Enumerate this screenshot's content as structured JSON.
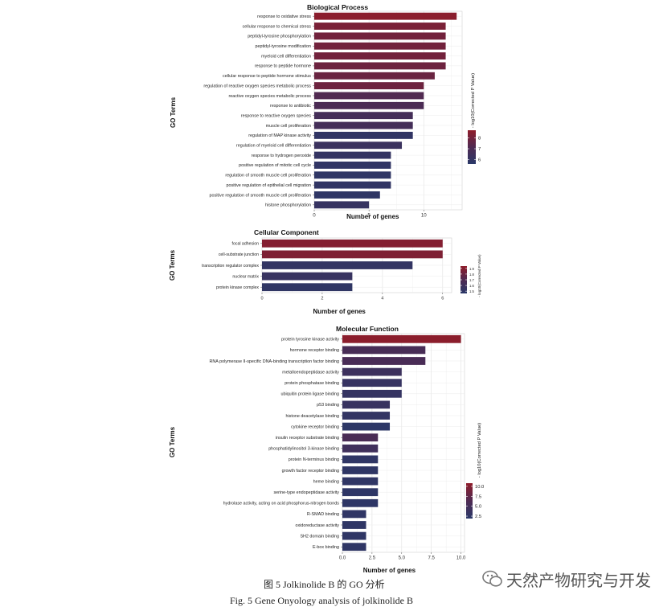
{
  "figure": {
    "caption_cn": "图 5   Jolkinolide B 的 GO 分析",
    "caption_en": "Fig. 5    Gene Onyology analysis of jolkinolide B",
    "watermark": "天然产物研究与开发"
  },
  "chart_data": [
    {
      "type": "bar",
      "orientation": "horizontal",
      "title": "Biological Process",
      "xlabel": "Number of genes",
      "ylabel": "GO Terms",
      "xlim": [
        0,
        13.5
      ],
      "xticks": [
        0,
        5,
        10
      ],
      "xtick_labels": [
        "0",
        "5",
        "10"
      ],
      "grid": true,
      "categories": [
        "response to oxidative stress",
        "cellular response to chemical stress",
        "peptidyl-tyrosine phosphorylation",
        "peptidyl-tyrosine modification",
        "myeloid cell differentiation",
        "response to peptide hormone",
        "cellular response to peptide hormone stimulus",
        "regulation of reactive oxygen species metabolic process",
        "reactive oxygen species metabolic process",
        "response to antibiotic",
        "response to reactive oxygen species",
        "muscle cell proliferation",
        "regulation of MAP kinase activity",
        "regulation of myeloid cell differentiation",
        "response to hydrogen peroxide",
        "positive regulation of mitotic cell cycle",
        "regulation of smooth muscle cell proliferation",
        "positive regulation of epithelial cell migration",
        "positive regulation of smooth muscle cell proliferation",
        "histone phosphorylation"
      ],
      "values": [
        13,
        12,
        12,
        12,
        12,
        12,
        11,
        10,
        10,
        10,
        9,
        9,
        9,
        8,
        7,
        7,
        7,
        7,
        6,
        5
      ],
      "color_values": [
        8.6,
        8.2,
        8.0,
        8.0,
        8.0,
        7.9,
        7.8,
        7.9,
        7.2,
        7.0,
        6.7,
        6.7,
        5.9,
        6.3,
        6.0,
        5.9,
        5.8,
        5.9,
        5.8,
        6.1
      ],
      "legend": {
        "title": "- log10(Corrected P Value)",
        "ticks": [
          8,
          7,
          6
        ],
        "tick_labels": [
          "8",
          "7",
          "6"
        ],
        "range": [
          5.6,
          8.7
        ],
        "placement": "right"
      }
    },
    {
      "type": "bar",
      "orientation": "horizontal",
      "title": "Cellular Component",
      "xlabel": "Number of genes",
      "ylabel": "GO Terms",
      "xlim": [
        0,
        6.3
      ],
      "xticks": [
        0,
        2,
        4,
        6
      ],
      "xtick_labels": [
        "0",
        "2",
        "4",
        "6"
      ],
      "grid": true,
      "categories": [
        "focal adhesion",
        "cell-substrate junction",
        "transcription regulator complex",
        "nuclear matrix",
        "protein kinase complex"
      ],
      "values": [
        6,
        6,
        5,
        3,
        3
      ],
      "color_values": [
        1.9,
        1.88,
        1.52,
        1.55,
        1.5
      ],
      "legend": {
        "title": "- log10(Corrected P Value)",
        "ticks": [
          1.9,
          1.8,
          1.7,
          1.6,
          1.5
        ],
        "tick_labels": [
          "1.9",
          "1.8",
          "1.7",
          "1.6",
          "1.5"
        ],
        "range": [
          1.46,
          1.94
        ],
        "placement": "right"
      }
    },
    {
      "type": "bar",
      "orientation": "horizontal",
      "title": "Molecular Function",
      "xlabel": "Number of genes",
      "ylabel": "GO Terms",
      "xlim": [
        0,
        10.3
      ],
      "xticks": [
        0,
        2.5,
        5,
        7.5,
        10
      ],
      "xtick_labels": [
        "0.0",
        "2.5",
        "5.0",
        "7.5",
        "10.0"
      ],
      "grid": true,
      "categories": [
        "protein tyrosine kinase activity",
        "hormone receptor binding",
        "RNA polymerase II-specific DNA-binding transcription factor binding",
        "metalloendopeptidase activity",
        "protein phosphatase binding",
        "ubiquitin protein ligase binding",
        "p53 binding",
        "histone deacetylase binding",
        "cytokine receptor binding",
        "insulin receptor substrate binding",
        "phosphatidylinositol 3-kinase binding",
        "protein N-terminus binding",
        "growth factor receptor binding",
        "heme binding",
        "serine-type endopeptidase activity",
        "hydrolase activity, acting on acid phosphorus-nitrogen bonds",
        "R-SMAD binding",
        "oxidoreductase activity",
        "SH2 domain binding",
        "E-box binding"
      ],
      "values": [
        10,
        7,
        7,
        5,
        5,
        5,
        4,
        4,
        4,
        3,
        3,
        3,
        3,
        3,
        3,
        3,
        2,
        2,
        2,
        2
      ],
      "color_values": [
        10.6,
        5.5,
        5.6,
        4.2,
        3.4,
        3.2,
        3.6,
        3.0,
        2.3,
        5.8,
        4.6,
        2.6,
        2.5,
        2.6,
        2.4,
        2.4,
        2.6,
        2.5,
        2.5,
        2.5
      ],
      "legend": {
        "title": "- log10(Corrected P Value)",
        "ticks": [
          10,
          7.5,
          5,
          2.5
        ],
        "tick_labels": [
          "10.0",
          "7.5",
          "5.0",
          "2.5"
        ],
        "range": [
          1.9,
          10.8
        ],
        "placement": "right"
      }
    }
  ],
  "colors": {
    "low": "#2a3868",
    "high": "#8e1c2a",
    "panel": "#ffffff",
    "grid": "#e6e6e6"
  }
}
